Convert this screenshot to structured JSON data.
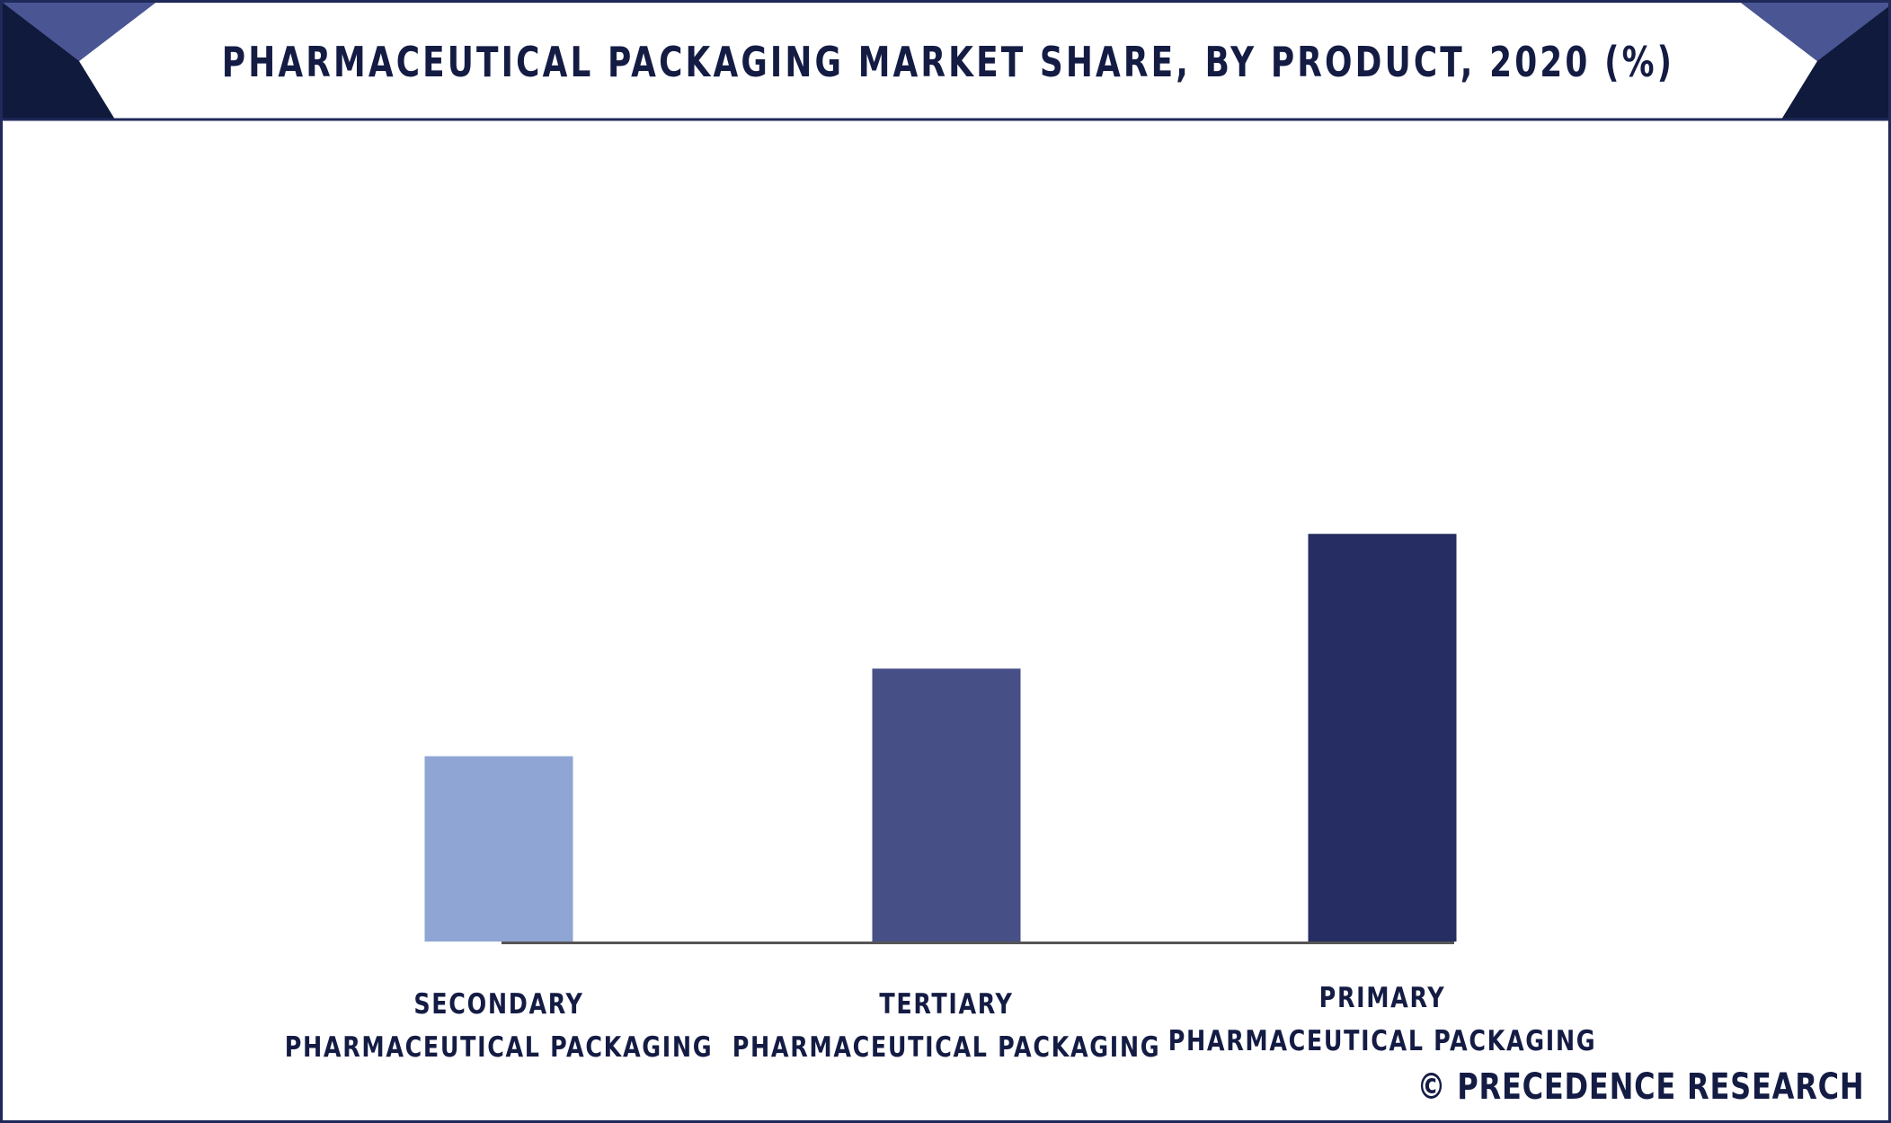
{
  "title": "PHARMACEUTICAL PACKAGING MARKET SHARE, BY PRODUCT, 2020 (%)",
  "credit": "© PRECEDENCE RESEARCH",
  "colors": {
    "frame": "#1f2a5a",
    "title_text": "#141c44",
    "corner_dark": "#0f1a3c",
    "corner_accent": "#4a5594",
    "baseline": "#555555"
  },
  "chart_data": {
    "type": "bar",
    "categories": [
      "SECONDARY PHARMACEUTICAL PACKAGING",
      "TERTIARY PHARMACEUTICAL PACKAGING",
      "PRIMARY PHARMACEUTICAL PACKAGING"
    ],
    "category_lines": [
      [
        "SECONDARY",
        "PHARMACEUTICAL PACKAGING"
      ],
      [
        "TERTIARY",
        "PHARMACEUTICAL PACKAGING"
      ],
      [
        "PRIMARY",
        "PHARMACEUTICAL PACKAGING"
      ]
    ],
    "values": [
      27.5,
      40.5,
      60.5
    ],
    "bar_colors": [
      "#8fa6d4",
      "#464f86",
      "#252d62"
    ],
    "ylim": [
      0,
      100
    ],
    "grid": false,
    "legend": "none",
    "xlabel": "",
    "ylabel": ""
  }
}
